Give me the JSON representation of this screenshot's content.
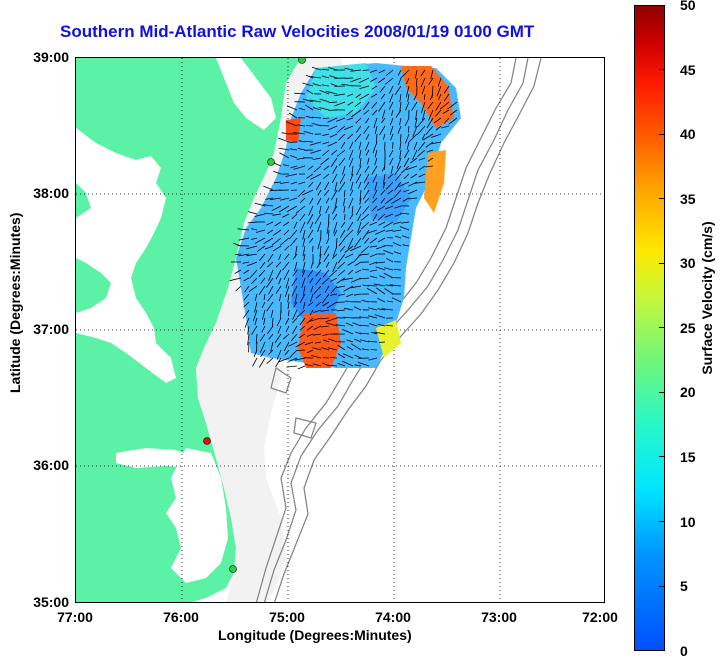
{
  "title": "Southern Mid-Atlantic Raw Velocities 2008/01/19 0100 GMT",
  "axes": {
    "xlabel": "Longitude (Degrees:Minutes)",
    "ylabel": "Latitude (Degrees:Minutes)",
    "x_ticks": [
      "77:00",
      "76:00",
      "75:00",
      "74:00",
      "73:00",
      "72:00"
    ],
    "y_ticks": [
      "39:00",
      "38:00",
      "37:00",
      "36:00",
      "35:00"
    ]
  },
  "colorbar": {
    "label": "Surface Velocity (cm/s)",
    "ticks": [
      "50",
      "45",
      "40",
      "35",
      "30",
      "25",
      "20",
      "15",
      "10",
      "5",
      "0"
    ],
    "range": [
      0,
      50
    ]
  },
  "colors": {
    "land": "#5cf2a6",
    "water": "#ffffff",
    "title": "#1010e0",
    "bathymetry": "#808080",
    "station_green": "#2ecc40",
    "station_red": "#e01010"
  },
  "stations": [
    {
      "color": "green"
    },
    {
      "color": "green"
    },
    {
      "color": "red"
    },
    {
      "color": "green"
    }
  ]
}
